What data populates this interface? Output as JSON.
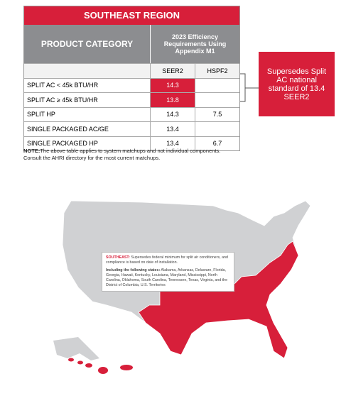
{
  "header": {
    "region": "SOUTHEAST REGION",
    "category_heading": "PRODUCT CATEGORY",
    "requirements_heading": "2023 Efficiency Requirements Using Appendix M1",
    "columns": [
      "SEER2",
      "HSPF2"
    ]
  },
  "table": {
    "rows": [
      {
        "category": "SPLIT AC < 45k BTU/HR",
        "seer2": 14.3,
        "highlight": true
      },
      {
        "category": "SPLIT AC ≥ 45k BTU/HR",
        "seer2": 13.8,
        "highlight": true
      },
      {
        "category": "SPLIT HP",
        "seer2": 14.3,
        "hspf2": 7.5
      },
      {
        "category": "SINGLE PACKAGED AC/GE",
        "seer2": 13.4
      },
      {
        "category": "SINGLE PACKAGED HP",
        "seer2": 13.4,
        "hspf2": 6.7
      }
    ]
  },
  "callout": "Supersedes Split AC national standard of 13.4 SEER2",
  "note": {
    "label": "NOTE:",
    "text": "The above table applies to system matchups and not individual components. Consult the AHRI directory for the most current matchups."
  },
  "map": {
    "info": {
      "label": "SOUTHEAST:",
      "text": "Supersedes federal minimum for split air conditioners, and compliance is based on date of installation.",
      "states_label": "Including the following states:",
      "states": "Alabama, Arkansas, Delaware, Florida, Georgia, Hawaii, Kentucky, Louisiana, Maryland, Mississippi, North Carolina, Oklahoma, South Carolina, Tennessee, Texas, Virginia, and the District of Columbia, U.S. Territories"
    }
  }
}
